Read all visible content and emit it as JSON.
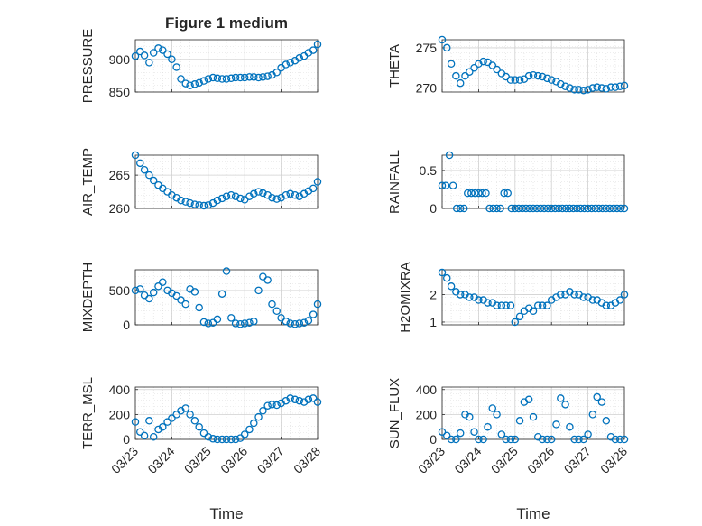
{
  "figure": {
    "title": "Figure 1 medium",
    "xlabel": "Time",
    "x_ticklabels": [
      "03/23",
      "03/24",
      "03/25",
      "03/26",
      "03/27",
      "03/28"
    ],
    "marker_color": "#0072BD",
    "grid_color": "#dcdcdc"
  },
  "chart_data": [
    {
      "type": "scatter",
      "ylabel": "PRESSURE",
      "yticks": [
        850,
        900
      ],
      "ylim": [
        850,
        930
      ],
      "xlim": [
        0,
        5
      ],
      "grid": true,
      "x": [
        0.0,
        0.13,
        0.25,
        0.38,
        0.5,
        0.63,
        0.75,
        0.88,
        1.0,
        1.13,
        1.25,
        1.38,
        1.5,
        1.63,
        1.75,
        1.88,
        2.0,
        2.13,
        2.25,
        2.38,
        2.5,
        2.63,
        2.75,
        2.88,
        3.0,
        3.13,
        3.25,
        3.38,
        3.5,
        3.63,
        3.75,
        3.88,
        4.0,
        4.13,
        4.25,
        4.38,
        4.5,
        4.63,
        4.75,
        4.88,
        5.0
      ],
      "y": [
        905,
        912,
        906,
        895,
        910,
        917,
        914,
        908,
        900,
        888,
        870,
        863,
        860,
        862,
        864,
        867,
        870,
        872,
        871,
        870,
        870,
        871,
        872,
        872,
        872,
        873,
        873,
        872,
        873,
        874,
        876,
        880,
        887,
        892,
        895,
        898,
        902,
        905,
        910,
        914,
        923
      ]
    },
    {
      "type": "scatter",
      "ylabel": "THETA",
      "yticks": [
        270,
        275
      ],
      "ylim": [
        269.5,
        276
      ],
      "xlim": [
        0,
        5
      ],
      "grid": true,
      "x": [
        0.0,
        0.13,
        0.25,
        0.38,
        0.5,
        0.63,
        0.75,
        0.88,
        1.0,
        1.13,
        1.25,
        1.38,
        1.5,
        1.63,
        1.75,
        1.88,
        2.0,
        2.13,
        2.25,
        2.38,
        2.5,
        2.63,
        2.75,
        2.88,
        3.0,
        3.13,
        3.25,
        3.38,
        3.5,
        3.63,
        3.75,
        3.88,
        4.0,
        4.13,
        4.25,
        4.38,
        4.5,
        4.63,
        4.75,
        4.88,
        5.0
      ],
      "y": [
        276,
        275,
        273,
        271.5,
        270.6,
        271.5,
        272,
        272.5,
        273,
        273.3,
        273.2,
        272.8,
        272.3,
        271.8,
        271.4,
        271,
        271,
        271,
        271.1,
        271.5,
        271.6,
        271.5,
        271.4,
        271.2,
        271,
        270.8,
        270.5,
        270.2,
        270,
        269.8,
        269.8,
        269.7,
        269.8,
        270,
        270.1,
        270,
        269.9,
        270.1,
        270.1,
        270.2,
        270.3
      ]
    },
    {
      "type": "scatter",
      "ylabel": "AIR_TEMP",
      "yticks": [
        260,
        265
      ],
      "ylim": [
        260,
        268
      ],
      "xlim": [
        0,
        5
      ],
      "grid": true,
      "x": [
        0.0,
        0.13,
        0.25,
        0.38,
        0.5,
        0.63,
        0.75,
        0.88,
        1.0,
        1.13,
        1.25,
        1.38,
        1.5,
        1.63,
        1.75,
        1.88,
        2.0,
        2.13,
        2.25,
        2.38,
        2.5,
        2.63,
        2.75,
        2.88,
        3.0,
        3.13,
        3.25,
        3.38,
        3.5,
        3.63,
        3.75,
        3.88,
        4.0,
        4.13,
        4.25,
        4.38,
        4.5,
        4.63,
        4.75,
        4.88,
        5.0
      ],
      "y": [
        268,
        266.8,
        265.8,
        265,
        264.2,
        263.5,
        263,
        262.5,
        262,
        261.6,
        261.2,
        261,
        260.8,
        260.6,
        260.5,
        260.4,
        260.5,
        260.8,
        261.2,
        261.5,
        261.8,
        262,
        261.8,
        261.5,
        261.3,
        261.8,
        262.2,
        262.5,
        262.3,
        262,
        261.6,
        261.4,
        261.6,
        262,
        262.2,
        262,
        261.8,
        262.2,
        262.6,
        263,
        264
      ]
    },
    {
      "type": "scatter",
      "ylabel": "RAINFALL",
      "yticks": [
        0,
        0.5
      ],
      "ylim": [
        0,
        0.7
      ],
      "xlim": [
        0,
        5
      ],
      "grid": true,
      "x": [
        0.0,
        0.1,
        0.2,
        0.3,
        0.4,
        0.5,
        0.6,
        0.7,
        0.8,
        0.9,
        1.0,
        1.1,
        1.2,
        1.3,
        1.4,
        1.5,
        1.6,
        1.7,
        1.8,
        1.9,
        2.0,
        2.1,
        2.2,
        2.3,
        2.4,
        2.5,
        2.6,
        2.7,
        2.8,
        2.9,
        3.0,
        3.1,
        3.2,
        3.3,
        3.4,
        3.5,
        3.6,
        3.7,
        3.8,
        3.9,
        4.0,
        4.1,
        4.2,
        4.3,
        4.4,
        4.5,
        4.6,
        4.7,
        4.8,
        4.9,
        5.0
      ],
      "y": [
        0.3,
        0.3,
        0.7,
        0.3,
        0,
        0,
        0,
        0.2,
        0.2,
        0.2,
        0.2,
        0.2,
        0.2,
        0,
        0,
        0,
        0,
        0.2,
        0.2,
        0,
        0,
        0,
        0,
        0,
        0,
        0,
        0,
        0,
        0,
        0,
        0,
        0,
        0,
        0,
        0,
        0,
        0,
        0,
        0,
        0,
        0,
        0,
        0,
        0,
        0,
        0,
        0,
        0,
        0,
        0,
        0
      ]
    },
    {
      "type": "scatter",
      "ylabel": "MIXDEPTH",
      "yticks": [
        0,
        500
      ],
      "ylim": [
        0,
        800
      ],
      "xlim": [
        0,
        5
      ],
      "grid": true,
      "x": [
        0.0,
        0.13,
        0.25,
        0.38,
        0.5,
        0.63,
        0.75,
        0.88,
        1.0,
        1.13,
        1.25,
        1.38,
        1.5,
        1.63,
        1.75,
        1.88,
        2.0,
        2.13,
        2.25,
        2.38,
        2.5,
        2.63,
        2.75,
        2.88,
        3.0,
        3.13,
        3.25,
        3.38,
        3.5,
        3.63,
        3.75,
        3.88,
        4.0,
        4.13,
        4.25,
        4.38,
        4.5,
        4.63,
        4.75,
        4.88,
        5.0
      ],
      "y": [
        500,
        520,
        430,
        380,
        470,
        560,
        620,
        500,
        460,
        420,
        360,
        300,
        520,
        480,
        250,
        40,
        20,
        30,
        80,
        450,
        780,
        100,
        20,
        10,
        20,
        30,
        50,
        500,
        700,
        650,
        300,
        200,
        100,
        50,
        20,
        10,
        20,
        30,
        60,
        150,
        300
      ]
    },
    {
      "type": "scatter",
      "ylabel": "H2OMIXRA",
      "yticks": [
        1,
        2
      ],
      "ylim": [
        0.9,
        2.9
      ],
      "xlim": [
        0,
        5
      ],
      "grid": true,
      "x": [
        0.0,
        0.13,
        0.25,
        0.38,
        0.5,
        0.63,
        0.75,
        0.88,
        1.0,
        1.13,
        1.25,
        1.38,
        1.5,
        1.63,
        1.75,
        1.88,
        2.0,
        2.13,
        2.25,
        2.38,
        2.5,
        2.63,
        2.75,
        2.88,
        3.0,
        3.13,
        3.25,
        3.38,
        3.5,
        3.63,
        3.75,
        3.88,
        4.0,
        4.13,
        4.25,
        4.38,
        4.5,
        4.63,
        4.75,
        4.88,
        5.0
      ],
      "y": [
        2.8,
        2.6,
        2.3,
        2.1,
        2.0,
        2.0,
        1.9,
        1.9,
        1.8,
        1.8,
        1.7,
        1.7,
        1.6,
        1.6,
        1.6,
        1.6,
        1.0,
        1.2,
        1.4,
        1.5,
        1.4,
        1.6,
        1.6,
        1.6,
        1.8,
        1.9,
        2.0,
        2.0,
        2.1,
        2.0,
        2.0,
        1.9,
        1.9,
        1.8,
        1.8,
        1.7,
        1.6,
        1.6,
        1.7,
        1.8,
        2.0
      ]
    },
    {
      "type": "scatter",
      "ylabel": "TERR_MSL",
      "yticks": [
        0,
        200,
        400
      ],
      "ylim": [
        0,
        420
      ],
      "xlim": [
        0,
        5
      ],
      "grid": true,
      "x": [
        0.0,
        0.13,
        0.25,
        0.38,
        0.5,
        0.63,
        0.75,
        0.88,
        1.0,
        1.13,
        1.25,
        1.38,
        1.5,
        1.63,
        1.75,
        1.88,
        2.0,
        2.13,
        2.25,
        2.38,
        2.5,
        2.63,
        2.75,
        2.88,
        3.0,
        3.13,
        3.25,
        3.38,
        3.5,
        3.63,
        3.75,
        3.88,
        4.0,
        4.13,
        4.25,
        4.38,
        4.5,
        4.63,
        4.75,
        4.88,
        5.0
      ],
      "y": [
        140,
        60,
        30,
        150,
        20,
        80,
        100,
        140,
        170,
        200,
        230,
        250,
        200,
        150,
        100,
        50,
        20,
        5,
        0,
        0,
        0,
        0,
        0,
        10,
        40,
        80,
        130,
        180,
        230,
        270,
        280,
        275,
        290,
        310,
        330,
        320,
        310,
        300,
        320,
        330,
        300
      ]
    },
    {
      "type": "scatter",
      "ylabel": "SUN_FLUX",
      "yticks": [
        0,
        200,
        400
      ],
      "ylim": [
        0,
        420
      ],
      "xlim": [
        0,
        5
      ],
      "grid": true,
      "x": [
        0.0,
        0.13,
        0.25,
        0.38,
        0.5,
        0.63,
        0.75,
        0.88,
        1.0,
        1.13,
        1.25,
        1.38,
        1.5,
        1.63,
        1.75,
        1.88,
        2.0,
        2.13,
        2.25,
        2.38,
        2.5,
        2.63,
        2.75,
        2.88,
        3.0,
        3.13,
        3.25,
        3.38,
        3.5,
        3.63,
        3.75,
        3.88,
        4.0,
        4.13,
        4.25,
        4.38,
        4.5,
        4.63,
        4.75,
        4.88,
        5.0
      ],
      "y": [
        60,
        30,
        0,
        0,
        50,
        200,
        180,
        60,
        0,
        0,
        100,
        250,
        200,
        40,
        0,
        0,
        0,
        150,
        300,
        320,
        180,
        20,
        0,
        0,
        0,
        120,
        330,
        280,
        100,
        0,
        0,
        0,
        40,
        200,
        340,
        300,
        150,
        20,
        0,
        0,
        0
      ]
    }
  ]
}
